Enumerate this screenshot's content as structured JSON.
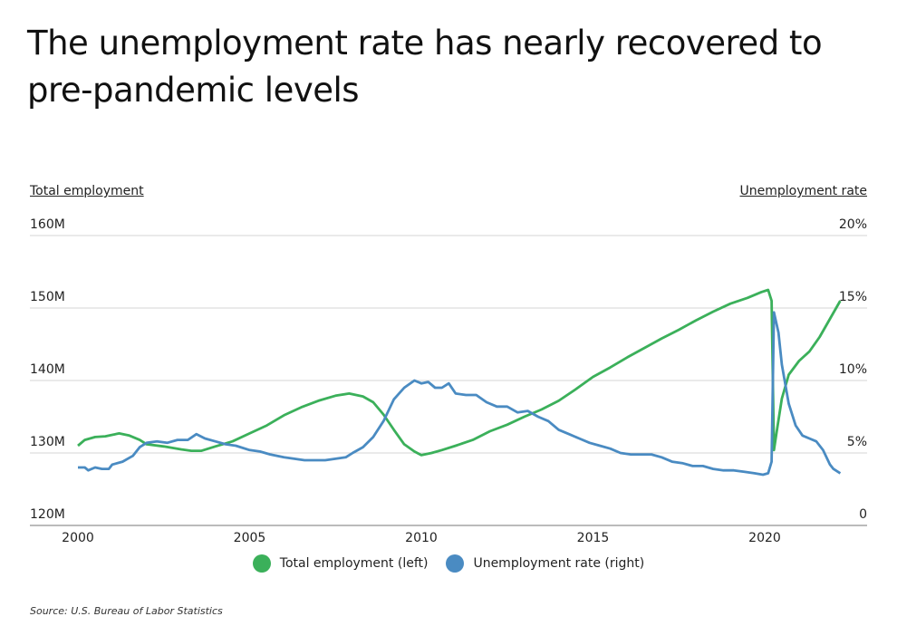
{
  "title": "The unemployment rate has nearly recovered to pre-pandemic levels",
  "left_axis_title": "Total employment",
  "right_axis_title": "Unemployment rate",
  "source": "Source:  U.S. Bureau of Labor Statistics",
  "colors": {
    "employment": "#3bb05a",
    "unemployment": "#4a8bc2",
    "grid": "#d6d6d6"
  },
  "chart_data": {
    "type": "line",
    "x_ticks": [
      "2000",
      "2005",
      "2010",
      "2015",
      "2020"
    ],
    "y_left_ticks": [
      "120M",
      "130M",
      "140M",
      "150M",
      "160M"
    ],
    "y_right_ticks": [
      "0",
      "5%",
      "10%",
      "15%",
      "20%"
    ],
    "xlim": [
      2000,
      2022.3
    ],
    "ylim_left": [
      120,
      160
    ],
    "ylim_right": [
      0,
      20
    ],
    "grid": true,
    "legend": "bottom-center",
    "series": [
      {
        "name": "Total employment (left)",
        "axis": "left",
        "points": [
          [
            2000.0,
            131.0
          ],
          [
            2000.2,
            131.8
          ],
          [
            2000.5,
            132.2
          ],
          [
            2000.8,
            132.3
          ],
          [
            2001.0,
            132.5
          ],
          [
            2001.2,
            132.7
          ],
          [
            2001.5,
            132.4
          ],
          [
            2001.8,
            131.8
          ],
          [
            2002.0,
            131.2
          ],
          [
            2002.5,
            130.9
          ],
          [
            2003.0,
            130.5
          ],
          [
            2003.3,
            130.3
          ],
          [
            2003.6,
            130.3
          ],
          [
            2004.0,
            130.9
          ],
          [
            2004.5,
            131.6
          ],
          [
            2005.0,
            132.7
          ],
          [
            2005.5,
            133.8
          ],
          [
            2006.0,
            135.2
          ],
          [
            2006.5,
            136.3
          ],
          [
            2007.0,
            137.2
          ],
          [
            2007.5,
            137.9
          ],
          [
            2007.9,
            138.2
          ],
          [
            2008.3,
            137.8
          ],
          [
            2008.6,
            137.0
          ],
          [
            2008.9,
            135.3
          ],
          [
            2009.2,
            133.2
          ],
          [
            2009.5,
            131.2
          ],
          [
            2009.8,
            130.2
          ],
          [
            2010.0,
            129.7
          ],
          [
            2010.3,
            130.0
          ],
          [
            2010.6,
            130.4
          ],
          [
            2011.0,
            131.0
          ],
          [
            2011.5,
            131.8
          ],
          [
            2012.0,
            133.0
          ],
          [
            2012.5,
            133.9
          ],
          [
            2013.0,
            135.0
          ],
          [
            2013.5,
            136.0
          ],
          [
            2014.0,
            137.2
          ],
          [
            2014.5,
            138.8
          ],
          [
            2015.0,
            140.5
          ],
          [
            2015.5,
            141.8
          ],
          [
            2016.0,
            143.2
          ],
          [
            2016.5,
            144.5
          ],
          [
            2017.0,
            145.8
          ],
          [
            2017.5,
            147.0
          ],
          [
            2018.0,
            148.3
          ],
          [
            2018.5,
            149.5
          ],
          [
            2019.0,
            150.6
          ],
          [
            2019.5,
            151.4
          ],
          [
            2019.9,
            152.2
          ],
          [
            2020.1,
            152.5
          ],
          [
            2020.2,
            151.0
          ],
          [
            2020.27,
            130.4
          ],
          [
            2020.35,
            133.0
          ],
          [
            2020.5,
            137.5
          ],
          [
            2020.7,
            140.8
          ],
          [
            2021.0,
            142.7
          ],
          [
            2021.3,
            144.0
          ],
          [
            2021.6,
            146.0
          ],
          [
            2021.9,
            148.5
          ],
          [
            2022.2,
            151.0
          ]
        ]
      },
      {
        "name": "Unemployment rate (right)",
        "axis": "right",
        "points": [
          [
            2000.0,
            4.0
          ],
          [
            2000.2,
            4.0
          ],
          [
            2000.3,
            3.8
          ],
          [
            2000.5,
            4.0
          ],
          [
            2000.7,
            3.9
          ],
          [
            2000.9,
            3.9
          ],
          [
            2001.0,
            4.2
          ],
          [
            2001.3,
            4.4
          ],
          [
            2001.6,
            4.8
          ],
          [
            2001.8,
            5.4
          ],
          [
            2002.0,
            5.7
          ],
          [
            2002.3,
            5.8
          ],
          [
            2002.6,
            5.7
          ],
          [
            2002.9,
            5.9
          ],
          [
            2003.2,
            5.9
          ],
          [
            2003.45,
            6.3
          ],
          [
            2003.7,
            6.0
          ],
          [
            2004.0,
            5.8
          ],
          [
            2004.3,
            5.6
          ],
          [
            2004.6,
            5.5
          ],
          [
            2005.0,
            5.2
          ],
          [
            2005.3,
            5.1
          ],
          [
            2005.6,
            4.9
          ],
          [
            2006.0,
            4.7
          ],
          [
            2006.3,
            4.6
          ],
          [
            2006.6,
            4.5
          ],
          [
            2006.9,
            4.5
          ],
          [
            2007.2,
            4.5
          ],
          [
            2007.5,
            4.6
          ],
          [
            2007.8,
            4.7
          ],
          [
            2008.0,
            5.0
          ],
          [
            2008.3,
            5.4
          ],
          [
            2008.6,
            6.1
          ],
          [
            2008.9,
            7.2
          ],
          [
            2009.2,
            8.7
          ],
          [
            2009.5,
            9.5
          ],
          [
            2009.8,
            10.0
          ],
          [
            2010.0,
            9.8
          ],
          [
            2010.2,
            9.9
          ],
          [
            2010.4,
            9.5
          ],
          [
            2010.6,
            9.5
          ],
          [
            2010.8,
            9.8
          ],
          [
            2011.0,
            9.1
          ],
          [
            2011.3,
            9.0
          ],
          [
            2011.6,
            9.0
          ],
          [
            2011.9,
            8.5
          ],
          [
            2012.2,
            8.2
          ],
          [
            2012.5,
            8.2
          ],
          [
            2012.8,
            7.8
          ],
          [
            2013.1,
            7.9
          ],
          [
            2013.4,
            7.5
          ],
          [
            2013.7,
            7.2
          ],
          [
            2014.0,
            6.6
          ],
          [
            2014.3,
            6.3
          ],
          [
            2014.6,
            6.0
          ],
          [
            2014.9,
            5.7
          ],
          [
            2015.2,
            5.5
          ],
          [
            2015.5,
            5.3
          ],
          [
            2015.8,
            5.0
          ],
          [
            2016.1,
            4.9
          ],
          [
            2016.4,
            4.9
          ],
          [
            2016.7,
            4.9
          ],
          [
            2017.0,
            4.7
          ],
          [
            2017.3,
            4.4
          ],
          [
            2017.6,
            4.3
          ],
          [
            2017.9,
            4.1
          ],
          [
            2018.2,
            4.1
          ],
          [
            2018.5,
            3.9
          ],
          [
            2018.8,
            3.8
          ],
          [
            2019.1,
            3.8
          ],
          [
            2019.4,
            3.7
          ],
          [
            2019.7,
            3.6
          ],
          [
            2019.95,
            3.5
          ],
          [
            2020.1,
            3.6
          ],
          [
            2020.2,
            4.4
          ],
          [
            2020.27,
            14.7
          ],
          [
            2020.4,
            13.3
          ],
          [
            2020.5,
            11.1
          ],
          [
            2020.7,
            8.4
          ],
          [
            2020.9,
            6.9
          ],
          [
            2021.1,
            6.2
          ],
          [
            2021.3,
            6.0
          ],
          [
            2021.5,
            5.8
          ],
          [
            2021.7,
            5.2
          ],
          [
            2021.9,
            4.2
          ],
          [
            2022.0,
            3.9
          ],
          [
            2022.2,
            3.6
          ]
        ]
      }
    ]
  }
}
